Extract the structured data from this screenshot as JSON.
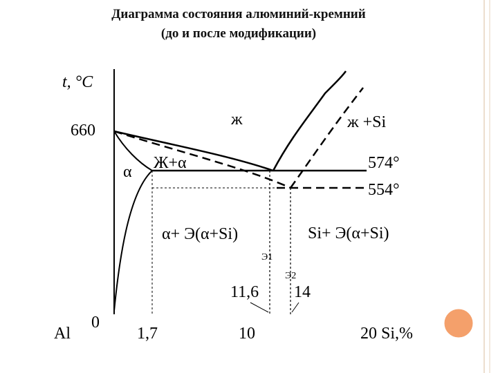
{
  "header": {
    "title": "Диаграмма состояния алюминий-кремний",
    "subtitle": "(до и после модификации)"
  },
  "diagram": {
    "axis_label": "t, °C",
    "t_660": "660",
    "origin": "0",
    "al": "Al",
    "x_1_7": "1,7",
    "x_10": "10",
    "x_20": "20  Si,%",
    "x_11_6": "11,6",
    "x_14": "14",
    "e1": "Э1",
    "e2": "Э2",
    "liquid": "ж",
    "liquid_si": "ж +Si",
    "alpha": "α",
    "liquid_alpha": "Ж+α",
    "t_574": "574°",
    "t_554": "554°",
    "alpha_eut": "α+  Э(α+Si)",
    "si_eut": "Si+  Э(α+Si)"
  }
}
